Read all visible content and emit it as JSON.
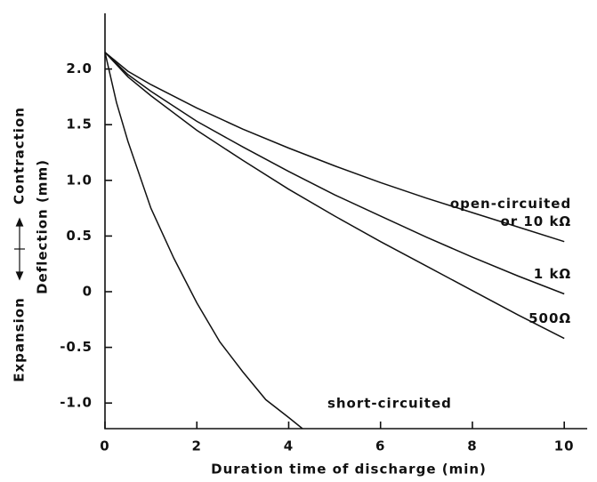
{
  "chart_data": {
    "type": "line",
    "xlabel": "Duration time of discharge (min)",
    "ylabel": "Deflection (mm)",
    "ylabel_up": "Contraction",
    "ylabel_down": "Expansion",
    "xlim": [
      0,
      10.5
    ],
    "ylim": [
      -1.23,
      2.5
    ],
    "xticks": [
      0,
      2,
      4,
      6,
      8,
      10
    ],
    "yticks": [
      {
        "value": 2,
        "label": "2.0"
      },
      1.5,
      {
        "value": 1,
        "label": "1.0"
      },
      0.5,
      0,
      -0.5,
      {
        "value": -1,
        "label": "-1.0"
      }
    ],
    "series": [
      {
        "label": [
          "open-circuited",
          "or 10 kΩ"
        ],
        "color": "#111111",
        "x": [
          0,
          0.5,
          1,
          2,
          3,
          4,
          5,
          6,
          7,
          8,
          9,
          10
        ],
        "values": [
          2.15,
          1.98,
          1.86,
          1.65,
          1.46,
          1.29,
          1.13,
          0.98,
          0.84,
          0.71,
          0.58,
          0.45
        ]
      },
      {
        "label": [
          "1 kΩ"
        ],
        "color": "#111111",
        "x": [
          0,
          0.5,
          1,
          2,
          3,
          4,
          5,
          6,
          7,
          8,
          9,
          10
        ],
        "values": [
          2.15,
          1.95,
          1.8,
          1.53,
          1.3,
          1.08,
          0.87,
          0.68,
          0.49,
          0.31,
          0.14,
          -0.02
        ]
      },
      {
        "label": [
          "500Ω"
        ],
        "color": "#111111",
        "x": [
          0,
          0.5,
          1,
          2,
          3,
          4,
          5,
          6,
          7,
          8,
          9,
          10
        ],
        "values": [
          2.15,
          1.93,
          1.76,
          1.45,
          1.18,
          0.92,
          0.68,
          0.45,
          0.23,
          0.01,
          -0.21,
          -0.42
        ]
      },
      {
        "label": [
          "short-circuited"
        ],
        "color": "#111111",
        "x": [
          0,
          0.25,
          0.5,
          1,
          1.5,
          2,
          2.5,
          3,
          3.5,
          4,
          4.3
        ],
        "values": [
          2.15,
          1.7,
          1.35,
          0.75,
          0.3,
          -0.1,
          -0.45,
          -0.72,
          -0.97,
          -1.13,
          -1.23
        ]
      }
    ]
  }
}
